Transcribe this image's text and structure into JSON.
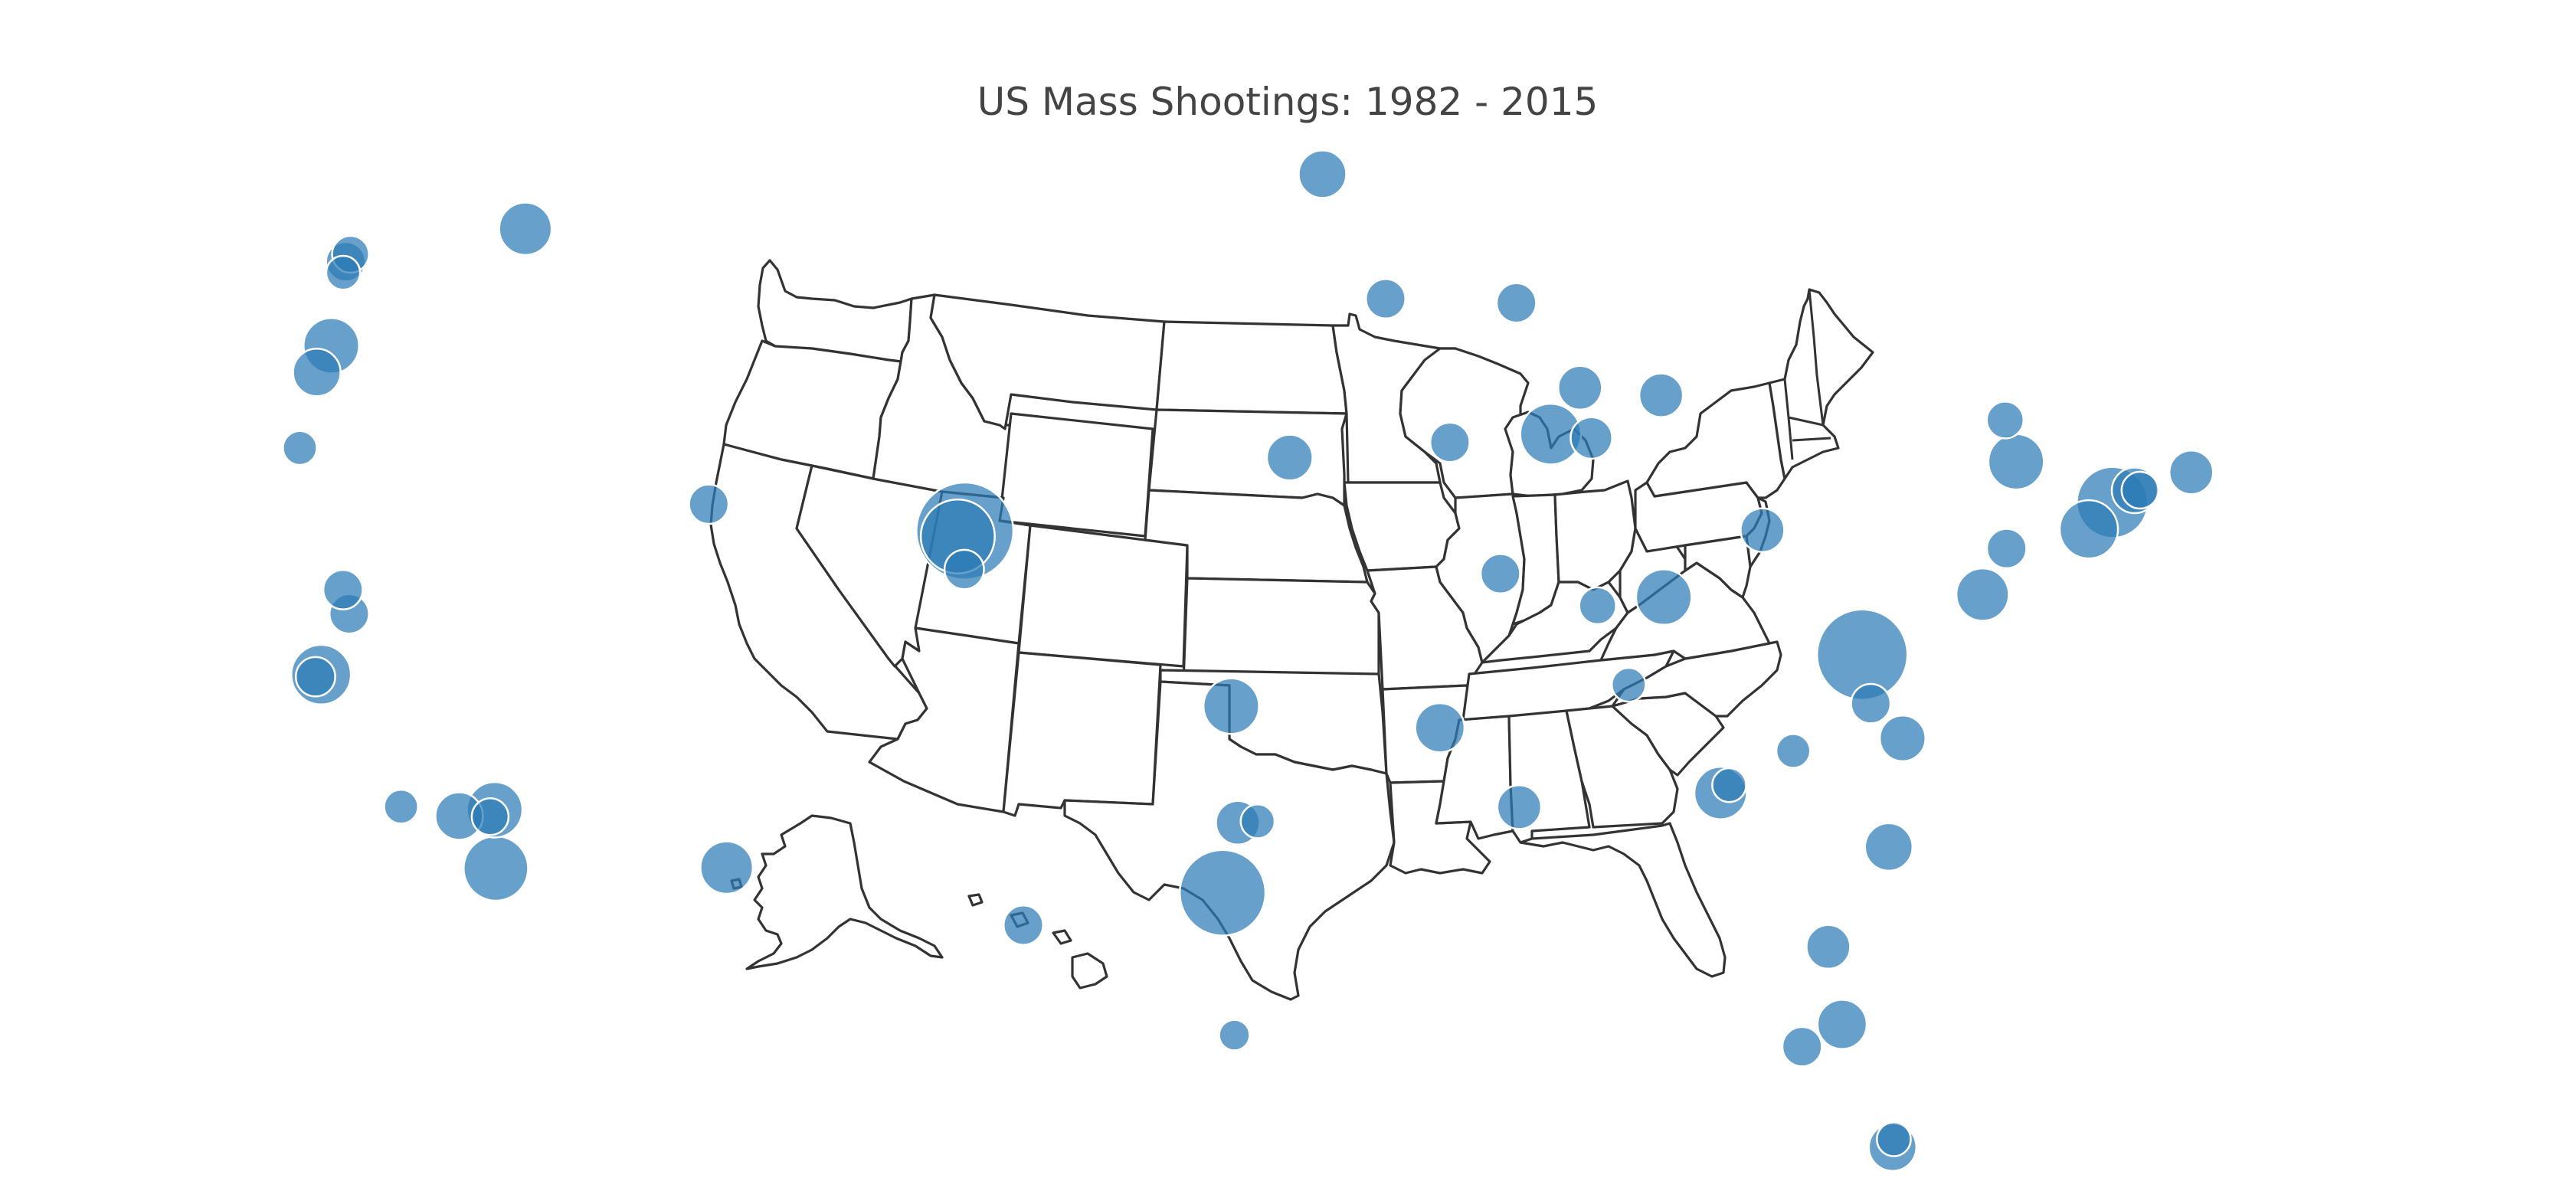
{
  "title": "US Mass Shootings: 1982 - 2015",
  "map": {
    "projection": "albers usa",
    "show_state_borders": true,
    "bubble_color": "#2c7bb6",
    "bubble_outline_color": "#ffffff",
    "land_color": "#ffffff",
    "border_color": "#333333"
  },
  "locations": [
    {
      "id": "seattle-1",
      "lat": 47.61,
      "lon": -122.33,
      "size": 4
    },
    {
      "id": "seattle-2",
      "lat": 47.45,
      "lon": -122.45,
      "size": 5
    },
    {
      "id": "seattle-3",
      "lat": 47.2,
      "lon": -122.5,
      "size": 3
    },
    {
      "id": "spokane",
      "lat": 47.66,
      "lon": -117.42,
      "size": 12
    },
    {
      "id": "portland",
      "lat": 45.52,
      "lon": -122.68,
      "size": 14
    },
    {
      "id": "salem",
      "lat": 44.94,
      "lon": -123.03,
      "size": 9
    },
    {
      "id": "roseburg",
      "lat": 43.22,
      "lon": -123.34,
      "size": 3
    },
    {
      "id": "yuba",
      "lat": 39.14,
      "lon": -121.62,
      "size": 5
    },
    {
      "id": "chico",
      "lat": 39.73,
      "lon": -121.84,
      "size": 5
    },
    {
      "id": "oakland",
      "lat": 37.8,
      "lon": -122.27,
      "size": 17
    },
    {
      "id": "san-francisco",
      "lat": 37.77,
      "lon": -122.42,
      "size": 5
    },
    {
      "id": "goleta",
      "lat": 34.44,
      "lon": -119.83,
      "size": 3
    },
    {
      "id": "los-angeles",
      "lat": 34.05,
      "lon": -118.24,
      "size": 9
    },
    {
      "id": "san-bernardino",
      "lat": 34.1,
      "lon": -117.29,
      "size": 14
    },
    {
      "id": "riverside",
      "lat": 33.95,
      "lon": -117.4,
      "size": 4
    },
    {
      "id": "san-diego",
      "lat": 32.72,
      "lon": -117.16,
      "size": 21
    },
    {
      "id": "salt-lake-city",
      "lat": 40.76,
      "lon": -111.89,
      "size": 5
    },
    {
      "id": "aurora",
      "lat": 39.73,
      "lon": -104.83,
      "size": 58
    },
    {
      "id": "littleton",
      "lat": 39.61,
      "lon": -105.02,
      "size": 30
    },
    {
      "id": "colorado-springs",
      "lat": 38.83,
      "lon": -104.82,
      "size": 5
    },
    {
      "id": "tucson",
      "lat": 32.22,
      "lon": -110.97,
      "size": 12
    },
    {
      "id": "red-lake",
      "lat": 47.87,
      "lon": -95.02,
      "size": 9
    },
    {
      "id": "minneapolis",
      "lat": 44.98,
      "lon": -93.27,
      "size": 5
    },
    {
      "id": "omaha",
      "lat": 41.26,
      "lon": -95.94,
      "size": 8
    },
    {
      "id": "iowa-city",
      "lat": 41.66,
      "lon": -91.53,
      "size": 5
    },
    {
      "id": "wausau",
      "lat": 44.96,
      "lon": -89.63,
      "size": 5
    },
    {
      "id": "milwaukee",
      "lat": 43.04,
      "lon": -87.91,
      "size": 7
    },
    {
      "id": "dekalb",
      "lat": 41.93,
      "lon": -88.75,
      "size": 18
    },
    {
      "id": "chicago",
      "lat": 41.88,
      "lon": -87.63,
      "size": 6
    },
    {
      "id": "st-louis",
      "lat": 38.63,
      "lon": -90.2,
      "size": 5
    },
    {
      "id": "evansville",
      "lat": 37.97,
      "lon": -87.57,
      "size": 4
    },
    {
      "id": "louisville",
      "lat": 38.25,
      "lon": -85.76,
      "size": 14
    },
    {
      "id": "grand-rapids",
      "lat": 42.96,
      "lon": -85.67,
      "size": 7
    },
    {
      "id": "columbus",
      "lat": 39.96,
      "lon": -83.0,
      "size": 7
    },
    {
      "id": "blacksburg",
      "lat": 37.23,
      "lon": -80.41,
      "size": 49
    },
    {
      "id": "binghamton",
      "lat": 42.1,
      "lon": -75.91,
      "size": 14
    },
    {
      "id": "syracuse",
      "lat": 43.05,
      "lon": -76.15,
      "size": 4
    },
    {
      "id": "newtown",
      "lat": 41.41,
      "lon": -73.31,
      "size": 27
    },
    {
      "id": "hartford",
      "lat": 41.76,
      "lon": -72.67,
      "size": 8
    },
    {
      "id": "manchester",
      "lat": 41.78,
      "lon": -72.52,
      "size": 4
    },
    {
      "id": "new-york",
      "lat": 40.71,
      "lon": -74.01,
      "size": 16
    },
    {
      "id": "boston",
      "lat": 42.36,
      "lon": -71.06,
      "size": 7
    },
    {
      "id": "pennsylvania",
      "lat": 40.04,
      "lon": -76.31,
      "size": 5
    },
    {
      "id": "washington-dc",
      "lat": 38.9,
      "lon": -77.04,
      "size": 12
    },
    {
      "id": "winston-salem",
      "lat": 36.1,
      "lon": -80.24,
      "size": 5
    },
    {
      "id": "carthage",
      "lat": 35.35,
      "lon": -79.42,
      "size": 8
    },
    {
      "id": "nashville",
      "lat": 36.16,
      "lon": -86.78,
      "size": 3
    },
    {
      "id": "atlanta",
      "lat": 33.75,
      "lon": -84.39,
      "size": 12
    },
    {
      "id": "atlanta-2",
      "lat": 33.95,
      "lon": -84.15,
      "size": 3
    },
    {
      "id": "greenville",
      "lat": 34.85,
      "lon": -82.39,
      "size": 3
    },
    {
      "id": "charleston",
      "lat": 32.78,
      "lon": -79.93,
      "size": 9
    },
    {
      "id": "jacksonville",
      "lat": 30.33,
      "lon": -81.66,
      "size": 7
    },
    {
      "id": "tampa",
      "lat": 27.95,
      "lon": -82.46,
      "size": 5
    },
    {
      "id": "orlando",
      "lat": 28.54,
      "lon": -81.38,
      "size": 10
    },
    {
      "id": "miami",
      "lat": 25.76,
      "lon": -80.19,
      "size": 9
    },
    {
      "id": "miami-2",
      "lat": 25.95,
      "lon": -80.15,
      "size": 3
    },
    {
      "id": "tupelo",
      "lat": 33.2,
      "lon": -89.8,
      "size": 7
    },
    {
      "id": "oklahoma-city",
      "lat": 35.47,
      "lon": -97.52,
      "size": 14
    },
    {
      "id": "little-rock",
      "lat": 35.0,
      "lon": -91.9,
      "size": 10
    },
    {
      "id": "fort-worth",
      "lat": 32.75,
      "lon": -97.33,
      "size": 7
    },
    {
      "id": "dallas",
      "lat": 32.78,
      "lon": -96.8,
      "size": 3
    },
    {
      "id": "killeen",
      "lat": 31.12,
      "lon": -97.73,
      "size": 43
    },
    {
      "id": "corpus-christi",
      "lat": 27.8,
      "lon": -97.4,
      "size": 2
    },
    {
      "id": "honolulu",
      "lat": 21.31,
      "lon": -157.86,
      "size": 5
    }
  ]
}
